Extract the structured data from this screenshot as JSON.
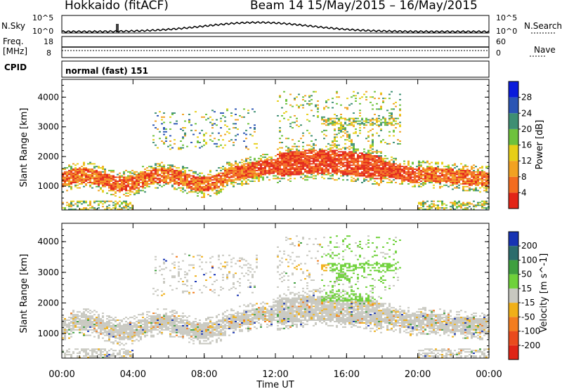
{
  "header": {
    "title_left": "Hokkaido (fitACF)",
    "title_right": "Beam 14 15/May/2015 – 16/May/2015"
  },
  "nsky_panel": {
    "left_label": "N.Sky",
    "left_ticks": [
      "10^5",
      "10^0"
    ],
    "right_ticks": [
      "10^5",
      "10^0"
    ],
    "right_label": "N.Search"
  },
  "freq_panel": {
    "left_label_1": "Freq.",
    "left_label_2": "[MHz]",
    "left_ticks": [
      "18",
      "8"
    ],
    "right_ticks": [
      "60",
      "0"
    ],
    "right_label": "Nave"
  },
  "cpid_panel": {
    "left_label": "CPID",
    "text": "normal (fast) 151"
  },
  "chart_data": [
    {
      "type": "heatmap",
      "name": "power",
      "ylabel": "Slant Range [km]",
      "yticks": [
        1000,
        2000,
        3000,
        4000
      ],
      "ylim": [
        200,
        4600
      ],
      "xlim": [
        0,
        24
      ],
      "colorbar": {
        "label": "Power [dB]",
        "ticks": [
          "4",
          "8",
          "12",
          "16",
          "20",
          "24",
          "28"
        ],
        "colors": [
          "#0a1bdc",
          "#2b55b4",
          "#3e8f73",
          "#6ec23c",
          "#e7cf17",
          "#f2a221",
          "#f36c1f",
          "#e32517"
        ]
      }
    },
    {
      "type": "heatmap",
      "name": "velocity",
      "ylabel": "Slant Range [km]",
      "yticks": [
        1000,
        2000,
        3000,
        4000
      ],
      "ylim": [
        200,
        4600
      ],
      "xlim": [
        0,
        24
      ],
      "colorbar": {
        "label": "Velocity [m s^-1]",
        "ticks": [
          "200",
          "100",
          "50",
          "15",
          "-15",
          "-50",
          "-100",
          "-200"
        ],
        "colors": [
          "#1733b3",
          "#2c6c6c",
          "#3f9f3f",
          "#6fd13a",
          "#c8c8c0",
          "#f0b018",
          "#f37d1f",
          "#ea4b1d",
          "#e02416"
        ]
      }
    }
  ],
  "xaxis": {
    "ticks": [
      "00:00",
      "04:00",
      "08:00",
      "12:00",
      "16:00",
      "20:00",
      "00:00"
    ],
    "label": "Time UT"
  }
}
